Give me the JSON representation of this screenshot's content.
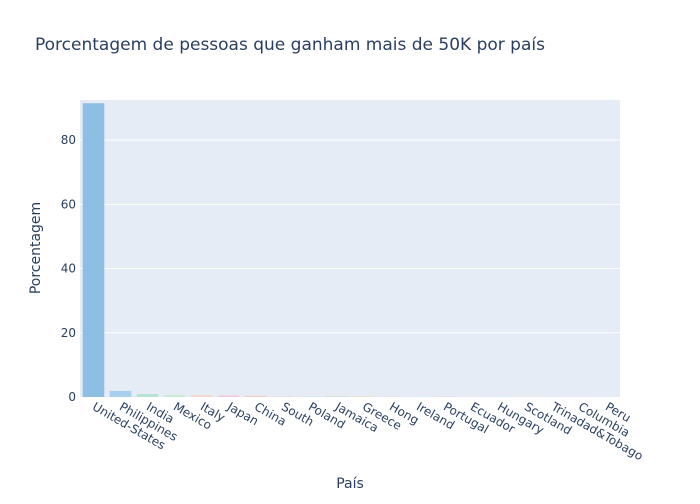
{
  "chart_data": {
    "type": "bar",
    "title": "Porcentagem de pessoas que ganham mais de 50K por país",
    "xlabel": "País",
    "ylabel": "Porcentagem",
    "ylim": [
      0,
      92.5
    ],
    "yticks": [
      0,
      20,
      40,
      60,
      80
    ],
    "grid": true,
    "categories": [
      "United-States",
      "Philippines",
      "India",
      "Mexico",
      "Italy",
      "Japan",
      "China",
      "South",
      "Poland",
      "Jamaica",
      "Greece",
      "Hong",
      "Ireland",
      "Portugal",
      "Ecuador",
      "Hungary",
      "Scotland",
      "Trinadad&Tobago",
      "Columbia",
      "Peru"
    ],
    "values": [
      91.5,
      1.9,
      0.9,
      0.6,
      0.5,
      0.45,
      0.4,
      0.35,
      0.3,
      0.3,
      0.25,
      0.2,
      0.15,
      0.15,
      0.12,
      0.1,
      0.08,
      0.06,
      0.05,
      0.04
    ],
    "colors": [
      "#8dbfe3",
      "#a8d0ee",
      "#b6e3d4",
      "#c7ead9",
      "#f5d6c6",
      "#f0c9d6",
      "#f3d2c0",
      "#e8e0f0",
      "#dfe8f2",
      "#d9e6d6",
      "#f2e3cc",
      "#e2e4f3",
      "#dde9f5",
      "#e6ddef",
      "#f4e6d8",
      "#dbe7ef",
      "#e9e1d3",
      "#dfe9e5",
      "#ece3ec",
      "#e5eaf5"
    ]
  }
}
